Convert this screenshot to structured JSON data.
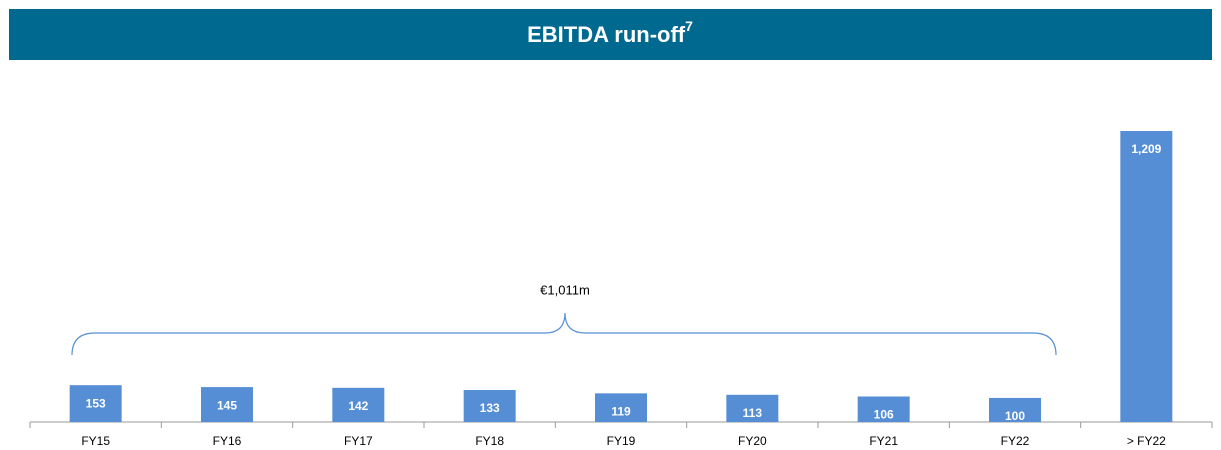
{
  "chart_data": {
    "type": "bar",
    "title": "EBITDA run-off",
    "title_superscript": "7",
    "annotation": "€1,011m",
    "categories": [
      "FY15",
      "FY16",
      "FY17",
      "FY18",
      "FY19",
      "FY20",
      "FY21",
      "FY22",
      "> FY22"
    ],
    "values": [
      153,
      145,
      142,
      133,
      119,
      113,
      106,
      100,
      1209
    ],
    "value_labels": [
      "153",
      "145",
      "142",
      "133",
      "119",
      "113",
      "106",
      "100",
      "1,209"
    ],
    "color": "#558ed5",
    "header_color": "#00698f"
  }
}
